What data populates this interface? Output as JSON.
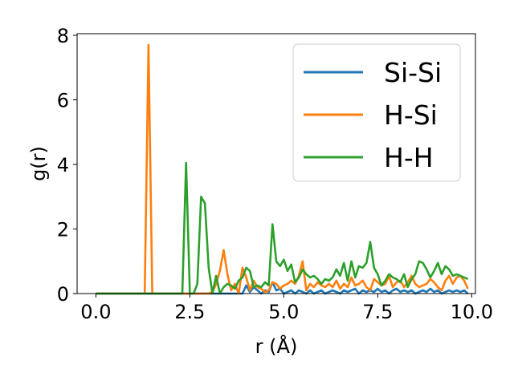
{
  "chart_data": {
    "type": "line",
    "xlabel": "r (Å)",
    "ylabel": "g(r)",
    "xlim": [
      -0.5,
      10.1
    ],
    "ylim": [
      0,
      8.05
    ],
    "xticks": [
      0.0,
      2.5,
      5.0,
      7.5,
      10.0
    ],
    "xtick_labels": [
      "0.0",
      "2.5",
      "5.0",
      "7.5",
      "10.0"
    ],
    "yticks": [
      0,
      2,
      4,
      6,
      8
    ],
    "ytick_labels": [
      "0",
      "2",
      "4",
      "6",
      "8"
    ],
    "grid": false,
    "legend_position": "top-right",
    "series": [
      {
        "name": "Si-Si",
        "color": "#1f77b4",
        "x": [
          0.0,
          3.9,
          4.0,
          4.1,
          4.2,
          4.3,
          4.4,
          4.5,
          4.6,
          4.7,
          4.8,
          4.9,
          5.0,
          5.1,
          5.2,
          5.3,
          5.4,
          5.5,
          5.6,
          5.7,
          5.8,
          5.9,
          6.0,
          6.1,
          6.2,
          6.3,
          6.4,
          6.5,
          6.6,
          6.7,
          6.8,
          6.9,
          7.0,
          7.1,
          7.2,
          7.3,
          7.4,
          7.5,
          7.6,
          7.7,
          7.8,
          7.9,
          8.0,
          8.1,
          8.2,
          8.3,
          8.4,
          8.5,
          8.6,
          8.7,
          8.8,
          8.9,
          9.0,
          9.1,
          9.2,
          9.3,
          9.4,
          9.5,
          9.6,
          9.7,
          9.8,
          9.9
        ],
        "y": [
          0,
          0,
          0.25,
          0.05,
          0.2,
          0.1,
          0,
          0.1,
          0.05,
          0.35,
          0.1,
          0.15,
          0,
          0.05,
          0.1,
          0,
          0.1,
          0.05,
          0,
          0.1,
          0,
          0.05,
          0.1,
          0,
          0.05,
          0.1,
          0.05,
          0,
          0.1,
          0.05,
          0.1,
          0.15,
          0,
          0.1,
          0.05,
          0.1,
          0.05,
          0.15,
          0.05,
          0.1,
          0,
          0.1,
          0.15,
          0.05,
          0.1,
          0.05,
          0.1,
          0,
          0.05,
          0.1,
          0.05,
          0.15,
          0.05,
          0.1,
          0,
          0.05,
          0.1,
          0.05,
          0.1,
          0.05,
          0.1,
          0
        ]
      },
      {
        "name": "H-Si",
        "color": "#ff7f0e",
        "x": [
          0.0,
          1.3,
          1.4,
          1.5,
          1.6,
          3.0,
          3.1,
          3.2,
          3.3,
          3.4,
          3.5,
          3.6,
          3.7,
          3.8,
          3.9,
          4.0,
          4.1,
          4.2,
          4.3,
          4.4,
          4.5,
          4.6,
          4.7,
          4.8,
          4.9,
          5.0,
          5.1,
          5.2,
          5.3,
          5.4,
          5.5,
          5.6,
          5.7,
          5.8,
          5.9,
          6.0,
          6.1,
          6.2,
          6.3,
          6.4,
          6.5,
          6.6,
          6.7,
          6.8,
          6.9,
          7.0,
          7.1,
          7.2,
          7.3,
          7.4,
          7.5,
          7.6,
          7.7,
          7.8,
          7.9,
          8.0,
          8.1,
          8.2,
          8.3,
          8.4,
          8.5,
          8.6,
          8.7,
          8.8,
          8.9,
          9.0,
          9.1,
          9.2,
          9.3,
          9.4,
          9.5,
          9.6,
          9.7,
          9.8,
          9.9
        ],
        "y": [
          0,
          0,
          7.7,
          0,
          0,
          0,
          0.05,
          0.3,
          0.7,
          1.35,
          0.6,
          0.1,
          0.3,
          0,
          0.8,
          0.5,
          0.1,
          0.4,
          0.2,
          0.15,
          0.05,
          0.1,
          0.35,
          0.3,
          0.15,
          0.25,
          0.3,
          0.4,
          0.3,
          0.55,
          1.0,
          0.1,
          0.3,
          0.2,
          0.35,
          0.25,
          0.2,
          0.3,
          0.2,
          0.4,
          0.15,
          0.3,
          0.2,
          0.5,
          0.25,
          0.3,
          0.4,
          0.2,
          0.1,
          0.45,
          0.35,
          0.25,
          0.3,
          0.55,
          0.2,
          0.35,
          0.4,
          0.2,
          0.35,
          0.55,
          0.3,
          0.2,
          0.25,
          0.3,
          0.45,
          0.35,
          0.2,
          0.1,
          0.4,
          0.55,
          0.3,
          0.5,
          0.55,
          0.4,
          0.15
        ]
      },
      {
        "name": "H-H",
        "color": "#2ca02c",
        "x": [
          0.0,
          2.3,
          2.4,
          2.5,
          2.6,
          2.7,
          2.8,
          2.9,
          3.0,
          3.1,
          3.2,
          3.3,
          3.4,
          3.5,
          3.6,
          3.7,
          3.8,
          3.9,
          4.0,
          4.1,
          4.2,
          4.3,
          4.4,
          4.5,
          4.6,
          4.7,
          4.8,
          4.9,
          5.0,
          5.1,
          5.2,
          5.3,
          5.4,
          5.5,
          5.6,
          5.7,
          5.8,
          5.9,
          6.0,
          6.1,
          6.2,
          6.3,
          6.4,
          6.5,
          6.6,
          6.7,
          6.8,
          6.9,
          7.0,
          7.1,
          7.2,
          7.3,
          7.4,
          7.5,
          7.6,
          7.7,
          7.8,
          7.9,
          8.0,
          8.1,
          8.2,
          8.3,
          8.4,
          8.5,
          8.6,
          8.7,
          8.8,
          8.9,
          9.0,
          9.1,
          9.2,
          9.3,
          9.4,
          9.5,
          9.6,
          9.7,
          9.8,
          9.9
        ],
        "y": [
          0,
          0,
          4.05,
          0,
          0,
          0.3,
          3.0,
          2.8,
          0.8,
          0,
          0.55,
          0,
          0.2,
          0.3,
          0.25,
          0.15,
          0.4,
          0.5,
          0.8,
          0.7,
          0.2,
          0.25,
          0.2,
          0.35,
          0.25,
          2.15,
          1.0,
          0.85,
          1.05,
          0.7,
          0.9,
          0.35,
          0.5,
          0.75,
          0.6,
          0.5,
          0.55,
          0.45,
          0.3,
          0.45,
          0.4,
          0.5,
          0.75,
          0.55,
          0.95,
          0.4,
          1.0,
          0.5,
          0.85,
          0.8,
          0.95,
          1.6,
          0.8,
          0.6,
          0.25,
          0.4,
          0.6,
          0.5,
          0.45,
          0.35,
          0.6,
          0.2,
          0.45,
          0.6,
          1.0,
          0.95,
          0.75,
          0.5,
          0.7,
          0.95,
          0.6,
          0.85,
          0.75,
          0.55,
          0.6,
          0.55,
          0.5,
          0.45
        ]
      }
    ]
  }
}
